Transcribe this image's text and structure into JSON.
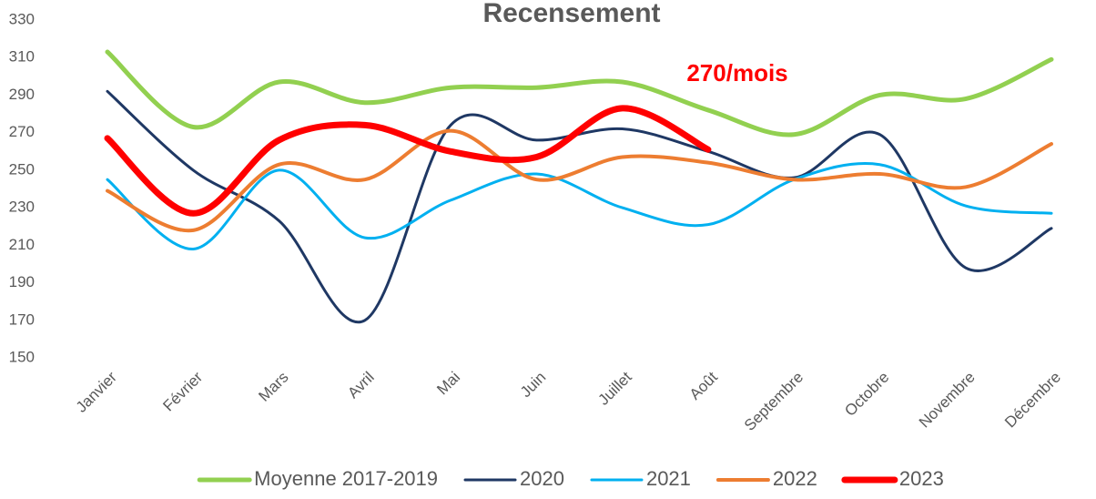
{
  "chart_data": {
    "type": "line",
    "title": "Recensement",
    "categories": [
      "Janvier",
      "Février",
      "Mars",
      "Avril",
      "Mai",
      "Juin",
      "Juillet",
      "Août",
      "Septembre",
      "Octobre",
      "Novembre",
      "Décembre"
    ],
    "series": [
      {
        "name": "Moyenne 2017-2019",
        "color": "#92d050",
        "width": 5,
        "values": [
          313,
          273,
          297,
          286,
          294,
          294,
          297,
          282,
          269,
          290,
          288,
          309
        ]
      },
      {
        "name": "2020",
        "color": "#1f3864",
        "width": 3,
        "values": [
          292,
          250,
          223,
          170,
          274,
          266,
          272,
          260,
          246,
          269,
          198,
          219
        ]
      },
      {
        "name": "2021",
        "color": "#00b0f0",
        "width": 3,
        "values": [
          245,
          208,
          250,
          214,
          234,
          248,
          230,
          221,
          245,
          253,
          231,
          227
        ]
      },
      {
        "name": "2022",
        "color": "#ed7d31",
        "width": 4,
        "values": [
          239,
          218,
          253,
          245,
          271,
          245,
          257,
          254,
          245,
          248,
          241,
          264
        ]
      },
      {
        "name": "2023",
        "color": "#ff0000",
        "width": 7,
        "values": [
          267,
          227,
          266,
          274,
          260,
          257,
          283,
          261,
          null,
          null,
          null,
          null
        ]
      }
    ],
    "annotation": "270/mois",
    "annotation_color": "#ff0000",
    "ylim": [
      150,
      330
    ],
    "yticks": [
      150,
      170,
      190,
      210,
      230,
      250,
      270,
      290,
      310,
      330
    ],
    "grid": false,
    "smooth": true,
    "legend": "bottom"
  }
}
